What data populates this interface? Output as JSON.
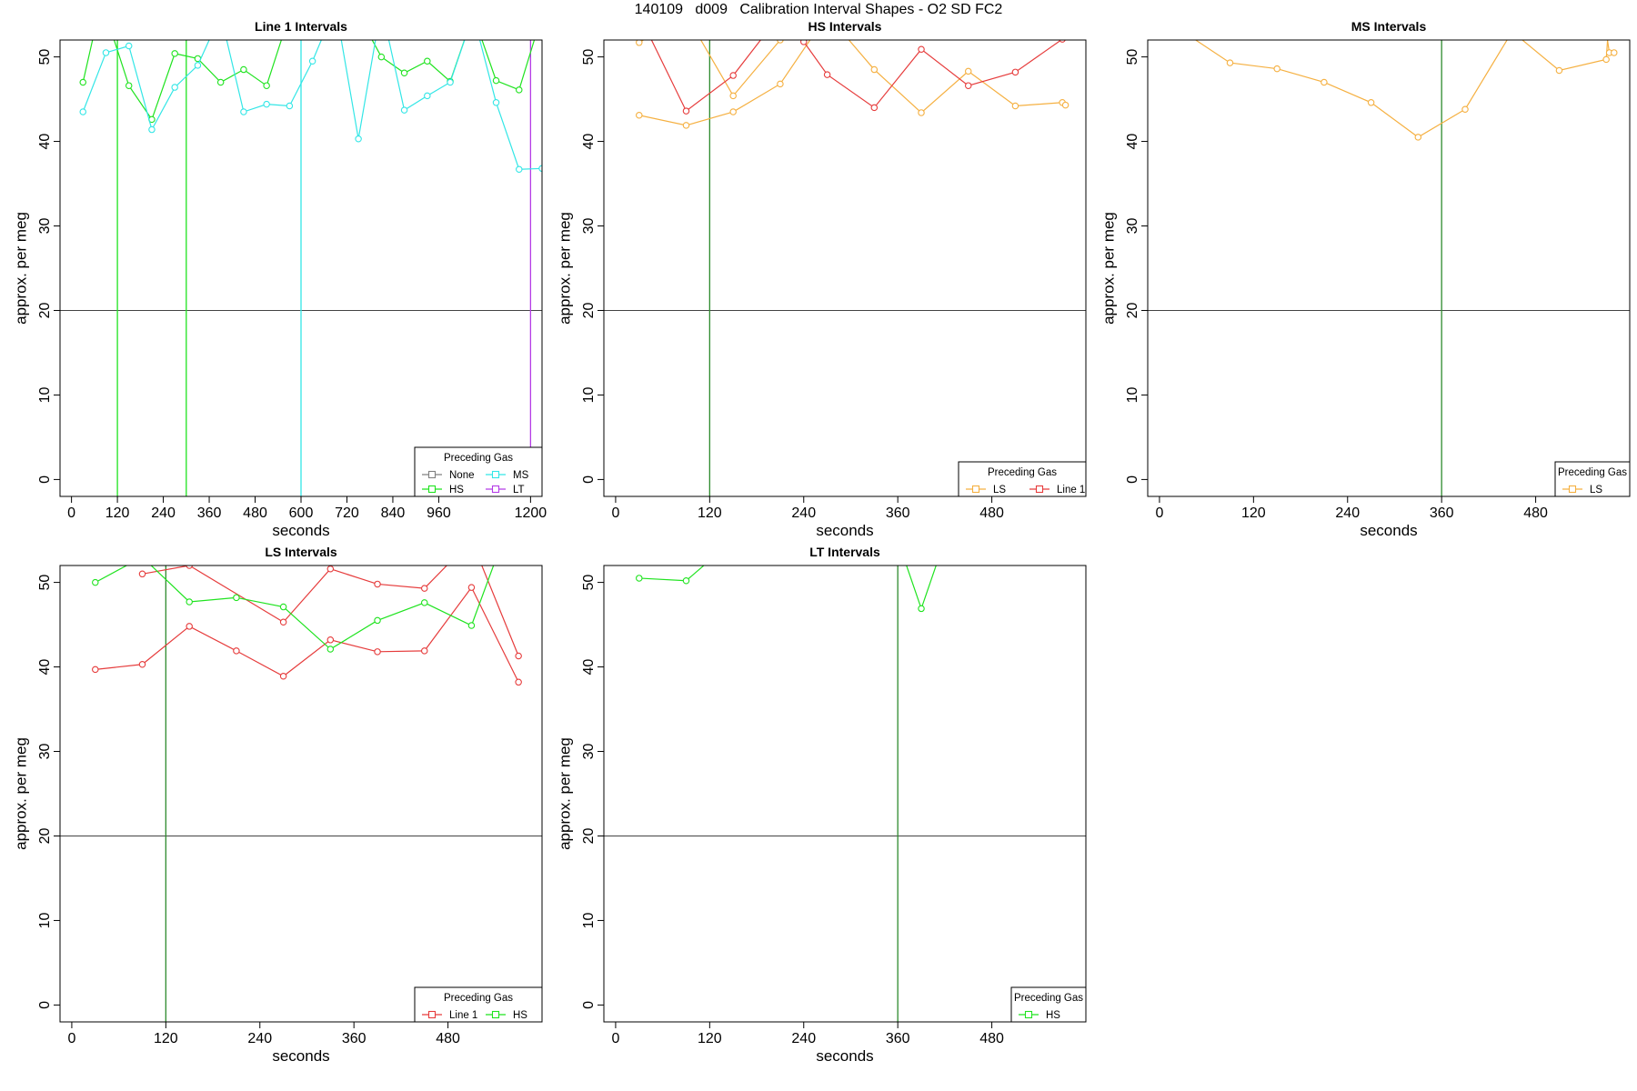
{
  "title": "140109   d009   Calibration Interval Shapes - O2 SD FC2",
  "colors": {
    "None": "#808080",
    "HS": "#1fe31f",
    "MS": "#33e6e6",
    "LT": "#b43ce6",
    "LS": "#f5b041",
    "Line 1": "#e63c3c",
    "vline": "#2e8b2e",
    "hline": "#444444"
  },
  "chart_data": [
    {
      "type": "line",
      "title": "Line 1 Intervals",
      "xlabel": "seconds",
      "ylabel": "approx. per meg",
      "xlim": [
        -30,
        1230
      ],
      "ylim": [
        -2,
        52
      ],
      "xticks": [
        0,
        120,
        240,
        360,
        480,
        600,
        720,
        840,
        960,
        1200
      ],
      "yticks": [
        0,
        10,
        20,
        30,
        40,
        50
      ],
      "hline": 20,
      "vlines": [
        {
          "x": 120,
          "color": "HS"
        },
        {
          "x": 300,
          "color": "HS"
        },
        {
          "x": 600,
          "color": "MS"
        },
        {
          "x": 1200,
          "color": "LT"
        }
      ],
      "legend": {
        "title": "Preceding Gas",
        "entries": [
          "None",
          "MS",
          "HS",
          "LT"
        ],
        "columns": 2
      },
      "series": [
        {
          "name": "HS",
          "x": [
            30,
            60,
            90,
            150,
            210,
            270,
            330,
            390,
            450,
            510,
            570,
            630,
            690,
            750,
            810,
            870,
            930,
            990,
            1050,
            1110,
            1170,
            1230
          ],
          "y": [
            47,
            53,
            55,
            46.6,
            42.6,
            50.4,
            49.8,
            47,
            48.5,
            46.6,
            55,
            56,
            55,
            55,
            50,
            48.1,
            49.5,
            47.1,
            55,
            47.2,
            46.1,
            55
          ]
        },
        {
          "name": "MS",
          "x": [
            30,
            90,
            150,
            210,
            270,
            330,
            390,
            450,
            510,
            570,
            630,
            690,
            750,
            810,
            870,
            930,
            990,
            1050,
            1110,
            1170,
            1230
          ],
          "y": [
            43.5,
            50.5,
            51.3,
            41.4,
            46.4,
            49,
            55,
            43.5,
            44.4,
            44.2,
            49.5,
            56,
            40.3,
            56,
            43.7,
            45.4,
            47,
            55,
            44.6,
            36.7,
            36.8
          ]
        }
      ]
    },
    {
      "type": "line",
      "title": "HS Intervals",
      "xlabel": "seconds",
      "ylabel": "approx. per meg",
      "xlim": [
        -15,
        600
      ],
      "ylim": [
        -2,
        52
      ],
      "xticks": [
        0,
        120,
        240,
        360,
        480
      ],
      "yticks": [
        0,
        10,
        20,
        30,
        40,
        50
      ],
      "hline": 20,
      "vlines": [
        {
          "x": 120,
          "color": "vline"
        }
      ],
      "legend": {
        "title": "Preceding Gas",
        "entries": [
          "LS",
          "Line 1"
        ],
        "columns": 2
      },
      "series": [
        {
          "name": "LS",
          "x": [
            30,
            90,
            150,
            210,
            270,
            330,
            390,
            450,
            510,
            570,
            574
          ],
          "y": [
            43.1,
            41.9,
            43.5,
            46.8,
            55,
            48.5,
            43.4,
            48.3,
            44.2,
            44.6,
            44.3
          ]
        },
        {
          "name": "LS",
          "x": [
            30,
            90,
            150,
            210,
            270
          ],
          "y": [
            51.7,
            55,
            45.4,
            52,
            55
          ]
        },
        {
          "name": "Line 1",
          "x": [
            30,
            90,
            150,
            210,
            240,
            270,
            330,
            390,
            450,
            510,
            570
          ],
          "y": [
            55,
            43.6,
            47.8,
            55,
            51.8,
            47.9,
            44,
            50.9,
            46.6,
            48.2,
            52.1
          ]
        }
      ]
    },
    {
      "type": "line",
      "title": "MS Intervals",
      "xlabel": "seconds",
      "ylabel": "approx. per meg",
      "xlim": [
        -15,
        600
      ],
      "ylim": [
        -2,
        52
      ],
      "xticks": [
        0,
        120,
        240,
        360,
        480
      ],
      "yticks": [
        0,
        10,
        20,
        30,
        40,
        50
      ],
      "hline": 20,
      "vlines": [
        {
          "x": 360,
          "color": "vline"
        }
      ],
      "legend": {
        "title": "Preceding Gas",
        "entries": [
          "LS"
        ],
        "columns": 1
      },
      "series": [
        {
          "name": "LS",
          "x": [
            30,
            90,
            150,
            210,
            270,
            330,
            390,
            450,
            510,
            570,
            574
          ],
          "y": [
            53,
            49.3,
            48.6,
            47,
            44.6,
            40.5,
            43.8,
            53,
            48.4,
            49.7,
            55
          ]
        },
        {
          "name": "LS",
          "x": [
            570,
            574,
            580
          ],
          "y": [
            53,
            50.5,
            50.5
          ]
        }
      ]
    },
    {
      "type": "line",
      "title": "LS Intervals",
      "xlabel": "seconds",
      "ylabel": "approx. per meg",
      "xlim": [
        -15,
        600
      ],
      "ylim": [
        -2,
        52
      ],
      "xticks": [
        0,
        120,
        240,
        360,
        480
      ],
      "yticks": [
        0,
        10,
        20,
        30,
        40,
        50
      ],
      "hline": 20,
      "vlines": [
        {
          "x": 120,
          "color": "vline"
        }
      ],
      "legend": {
        "title": "Preceding Gas",
        "entries": [
          "Line 1",
          "HS"
        ],
        "columns": 2
      },
      "series": [
        {
          "name": "Line 1",
          "x": [
            30,
            90,
            150,
            210,
            270,
            330,
            390,
            450,
            510,
            570
          ],
          "y": [
            39.7,
            40.3,
            44.8,
            41.9,
            38.9,
            43.2,
            41.8,
            41.9,
            49.4,
            38.2
          ]
        },
        {
          "name": "Line 1",
          "x": [
            90,
            150,
            270,
            330,
            390,
            450,
            510,
            570
          ],
          "y": [
            51,
            52,
            45.3,
            51.6,
            49.8,
            49.3,
            55,
            41.3
          ]
        },
        {
          "name": "HS",
          "x": [
            30,
            90,
            150,
            210,
            270,
            330,
            390,
            450,
            510,
            550
          ],
          "y": [
            50,
            53,
            47.7,
            48.2,
            47.1,
            42.1,
            45.5,
            47.6,
            44.9,
            55
          ]
        }
      ]
    },
    {
      "type": "line",
      "title": "LT Intervals",
      "xlabel": "seconds",
      "ylabel": "approx. per meg",
      "xlim": [
        -15,
        600
      ],
      "ylim": [
        -2,
        52
      ],
      "xticks": [
        0,
        120,
        240,
        360,
        480
      ],
      "yticks": [
        0,
        10,
        20,
        30,
        40,
        50
      ],
      "hline": 20,
      "vlines": [
        {
          "x": 360,
          "color": "vline"
        }
      ],
      "legend": {
        "title": "Preceding Gas",
        "entries": [
          "HS"
        ],
        "columns": 1
      },
      "series": [
        {
          "name": "HS",
          "x": [
            30,
            90,
            150
          ],
          "y": [
            50.5,
            50.2,
            55
          ]
        },
        {
          "name": "HS",
          "x": [
            360,
            390,
            420
          ],
          "y": [
            55,
            46.9,
            55
          ]
        }
      ]
    }
  ]
}
